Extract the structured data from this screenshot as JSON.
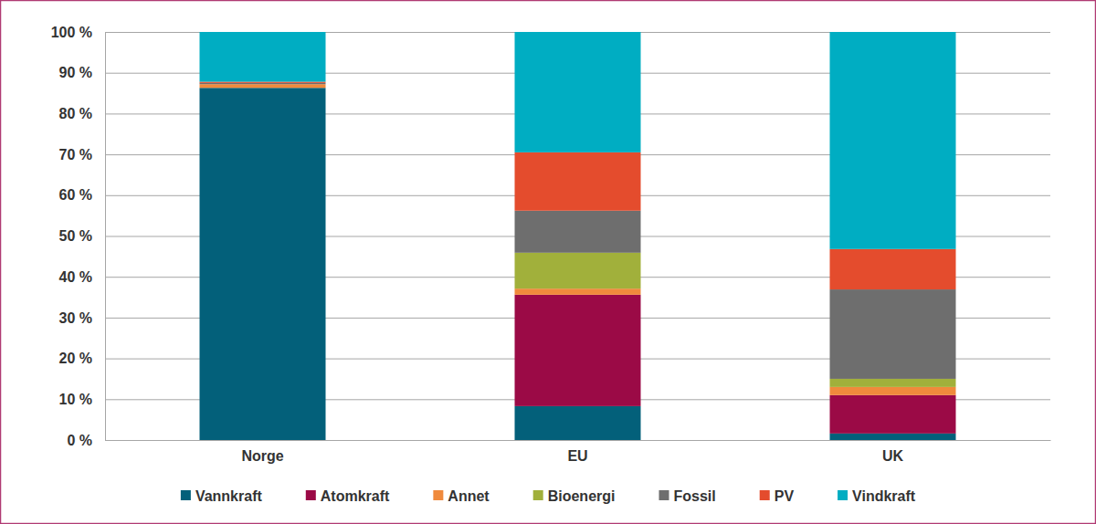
{
  "chart_data": {
    "type": "bar",
    "stacked": true,
    "grid": true,
    "legend": "bottom",
    "categories": [
      "Norge",
      "EU",
      "UK"
    ],
    "ylim": [
      0,
      100
    ],
    "yticks": [
      {
        "value": 0,
        "label": "0 %"
      },
      {
        "value": 10,
        "label": "10 %"
      },
      {
        "value": 20,
        "label": "20 %"
      },
      {
        "value": 30,
        "label": "30 %"
      },
      {
        "value": 40,
        "label": "40 %"
      },
      {
        "value": 50,
        "label": "50 %"
      },
      {
        "value": 60,
        "label": "60 %"
      },
      {
        "value": 70,
        "label": "70 %"
      },
      {
        "value": 80,
        "label": "80 %"
      },
      {
        "value": 90,
        "label": "90 %"
      },
      {
        "value": 100,
        "label": "100 %"
      }
    ],
    "series": [
      {
        "name": "Vannkraft",
        "color": "#03607a",
        "values": [
          86.3,
          8.3,
          1.6
        ]
      },
      {
        "name": "Atomkraft",
        "color": "#9b0a46",
        "values": [
          0,
          27.3,
          9.4
        ]
      },
      {
        "name": "Annet",
        "color": "#f08a3c",
        "values": [
          0.9,
          1.5,
          2.0
        ]
      },
      {
        "name": "Bioenergi",
        "color": "#a1b03b",
        "values": [
          0,
          8.8,
          2.0
        ]
      },
      {
        "name": "Fossil",
        "color": "#6e6e6e",
        "values": [
          0.3,
          10.3,
          21.9
        ]
      },
      {
        "name": "PV",
        "color": "#e44c2d",
        "values": [
          0.3,
          14.3,
          9.9
        ]
      },
      {
        "name": "Vindkraft",
        "color": "#00adc2",
        "values": [
          12.2,
          29.5,
          53.2
        ]
      }
    ]
  }
}
